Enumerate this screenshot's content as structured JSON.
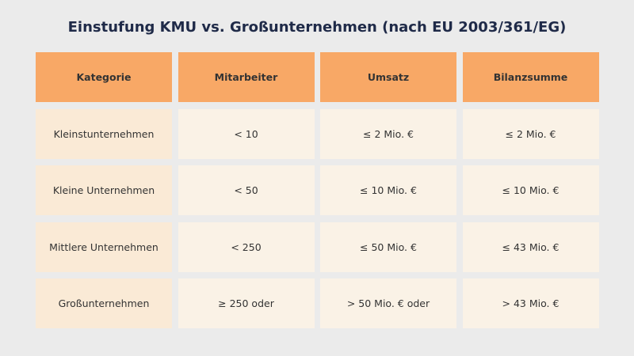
{
  "title": "Einstufung KMU vs. Großunternehmen (nach EU 2003/361/EG)",
  "colors": {
    "header": "#f8a866",
    "first_column": "#faead6",
    "cells": "#faf2e6",
    "background": "#ebebeb",
    "title": "#1f2a48"
  },
  "table": {
    "headers": [
      "Kategorie",
      "Mitarbeiter",
      "Umsatz",
      "Bilanzsumme"
    ],
    "rows": [
      [
        "Kleinstunternehmen",
        "< 10",
        "≤ 2 Mio. €",
        "≤ 2 Mio. €"
      ],
      [
        "Kleine Unternehmen",
        "< 50",
        "≤ 10 Mio. €",
        "≤ 10 Mio. €"
      ],
      [
        "Mittlere Unternehmen",
        "< 250",
        "≤ 50 Mio. €",
        "≤ 43 Mio. €"
      ],
      [
        "Großunternehmen",
        "≥ 250 oder",
        "> 50 Mio. € oder",
        "> 43 Mio. €"
      ]
    ]
  }
}
